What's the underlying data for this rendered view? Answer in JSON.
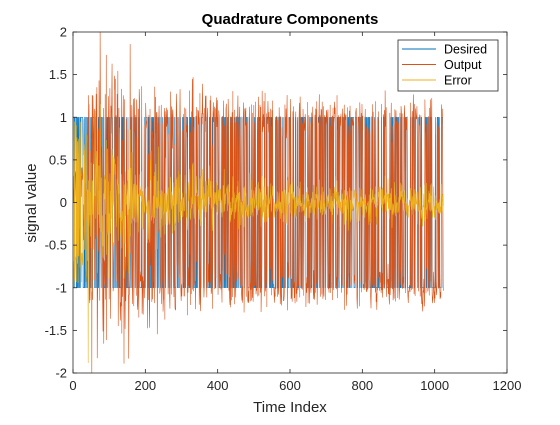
{
  "chart_data": {
    "type": "line",
    "title": "Quadrature Components",
    "xlabel": "Time Index",
    "ylabel": "signal value",
    "xlim": [
      0,
      1200
    ],
    "ylim": [
      -2,
      2
    ],
    "xticks": [
      0,
      200,
      400,
      600,
      800,
      1000,
      1200
    ],
    "yticks": [
      -2,
      -1.5,
      -1,
      -0.5,
      0,
      0.5,
      1,
      1.5,
      2
    ],
    "xtick_labels": [
      "0",
      "200",
      "400",
      "600",
      "800",
      "1000",
      "1200"
    ],
    "ytick_labels": [
      "-2",
      "-1.5",
      "-1",
      "-0.5",
      "0",
      "0.5",
      "1",
      "1.5",
      "2"
    ],
    "grid": false,
    "legend_position": "top-right",
    "n_samples": 1024,
    "series": [
      {
        "name": "Desired",
        "color": "#0072BD",
        "description": "random ±1 symbol sequence over samples 1–1024",
        "values_range": [
          -1,
          1
        ]
      },
      {
        "name": "Output",
        "color": "#D95319",
        "description": "equalizer output converging toward ±1; large spread (about -1.5 to 1.55) in the first ~300 samples, settling to about ±0.3 around ±1 later",
        "max_approx": 1.55,
        "min_approx": -1.5
      },
      {
        "name": "Error",
        "color": "#EDB120",
        "description": "error signal, ±1 swings near start (min about -1.88 near x≈40), decaying to about ±0.25 around 0 by the end",
        "max_approx": 1.4,
        "min_approx": -1.88
      }
    ]
  }
}
